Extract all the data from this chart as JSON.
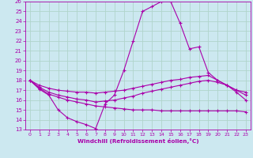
{
  "background_color": "#cce8f0",
  "grid_color": "#b0d4cc",
  "line_color": "#aa00aa",
  "xlabel": "Windchill (Refroidissement éolien,°C)",
  "tick_color": "#aa00aa",
  "xlim": [
    -0.5,
    23.5
  ],
  "ylim": [
    13,
    26
  ],
  "xticks": [
    0,
    1,
    2,
    3,
    4,
    5,
    6,
    7,
    8,
    9,
    10,
    11,
    12,
    13,
    14,
    15,
    16,
    17,
    18,
    19,
    20,
    21,
    22,
    23
  ],
  "yticks": [
    13,
    14,
    15,
    16,
    17,
    18,
    19,
    20,
    21,
    22,
    23,
    24,
    25,
    26
  ],
  "lines": [
    {
      "x": [
        0,
        1,
        2,
        3,
        4,
        5,
        6,
        7,
        8,
        9,
        10,
        11,
        12,
        13,
        14,
        15,
        16,
        17,
        18,
        19,
        20,
        21,
        22,
        23
      ],
      "y": [
        18,
        17.1,
        16.5,
        15.0,
        14.2,
        13.8,
        13.5,
        13.1,
        15.6,
        16.5,
        19.0,
        22.0,
        25.0,
        25.5,
        26.0,
        26.0,
        23.8,
        21.2,
        21.4,
        18.8,
        18.0,
        17.5,
        16.8,
        16.0
      ]
    },
    {
      "x": [
        0,
        1,
        2,
        3,
        4,
        5,
        6,
        7,
        8,
        9,
        10,
        11,
        12,
        13,
        14,
        15,
        16,
        17,
        18,
        19,
        20,
        21,
        22,
        23
      ],
      "y": [
        18.0,
        17.5,
        17.2,
        17.0,
        16.9,
        16.8,
        16.8,
        16.7,
        16.8,
        16.9,
        17.0,
        17.2,
        17.4,
        17.6,
        17.8,
        18.0,
        18.1,
        18.3,
        18.4,
        18.5,
        18.0,
        17.5,
        17.0,
        16.8
      ]
    },
    {
      "x": [
        0,
        1,
        2,
        3,
        4,
        5,
        6,
        7,
        8,
        9,
        10,
        11,
        12,
        13,
        14,
        15,
        16,
        17,
        18,
        19,
        20,
        21,
        22,
        23
      ],
      "y": [
        18.0,
        17.2,
        16.6,
        16.3,
        16.0,
        15.8,
        15.6,
        15.4,
        15.3,
        15.2,
        15.1,
        15.0,
        15.0,
        15.0,
        14.9,
        14.9,
        14.9,
        14.9,
        14.9,
        14.9,
        14.9,
        14.9,
        14.9,
        14.8
      ]
    },
    {
      "x": [
        0,
        1,
        2,
        3,
        4,
        5,
        6,
        7,
        8,
        9,
        10,
        11,
        12,
        13,
        14,
        15,
        16,
        17,
        18,
        19,
        20,
        21,
        22,
        23
      ],
      "y": [
        18.0,
        17.3,
        16.8,
        16.5,
        16.3,
        16.1,
        16.0,
        15.8,
        15.9,
        16.0,
        16.2,
        16.4,
        16.7,
        16.9,
        17.1,
        17.3,
        17.5,
        17.7,
        17.9,
        18.0,
        17.8,
        17.5,
        17.0,
        16.5
      ]
    }
  ]
}
